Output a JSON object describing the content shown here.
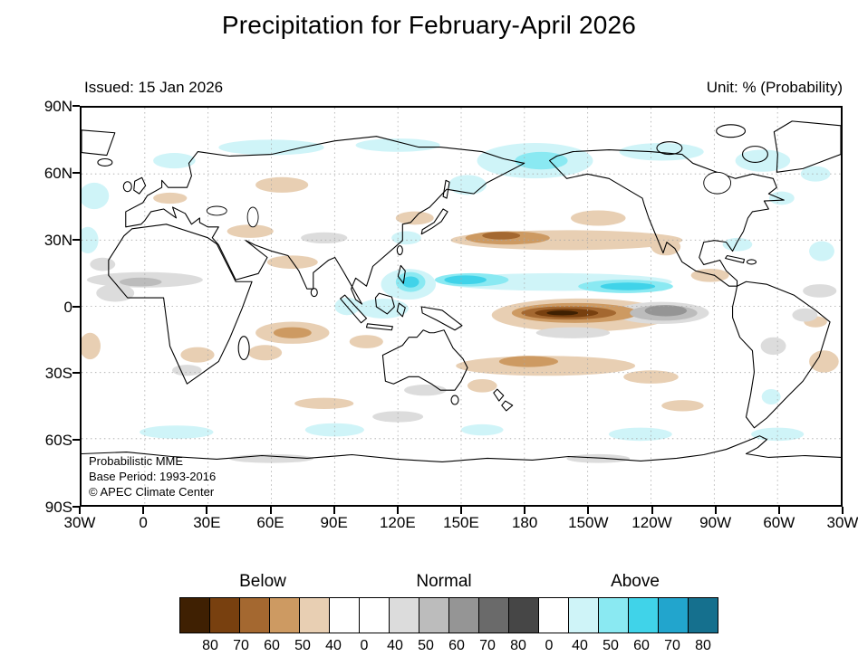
{
  "header": {
    "title": "Precipitation for February-April 2026",
    "issued": "Issued: 15 Jan 2026",
    "unit": "Unit: % (Probability)"
  },
  "map": {
    "credits": [
      "Probabilistic MME",
      "Base Period: 1993-2016",
      "© APEC Climate Center"
    ]
  },
  "axes": {
    "x_ticks": [
      "30W",
      "0",
      "30E",
      "60E",
      "90E",
      "120E",
      "150E",
      "180",
      "150W",
      "120W",
      "90W",
      "60W",
      "30W"
    ],
    "y_ticks": [
      "90N",
      "60N",
      "30N",
      "0",
      "30S",
      "60S",
      "90S"
    ]
  },
  "colorbar": {
    "groups": [
      "Below",
      "Normal",
      "Above"
    ],
    "cells": [
      "below.80",
      "below.70",
      "below.60",
      "below.50",
      "below.40",
      "white",
      "white",
      "normal.40",
      "normal.50",
      "normal.60",
      "normal.70",
      "normal.80",
      "white",
      "above.40",
      "above.50",
      "above.60",
      "above.70",
      "above.80"
    ],
    "boundary_labels": [
      "80",
      "70",
      "60",
      "50",
      "40",
      "0",
      "40",
      "50",
      "60",
      "70",
      "80",
      "0",
      "40",
      "50",
      "60",
      "70",
      "80"
    ]
  },
  "chart_data": {
    "type": "heatmap",
    "title": "Precipitation for February-April 2026",
    "issued": "Issued: 15 Jan 2026",
    "unit": "% (Probability)",
    "model": "Probabilistic MME",
    "base_period": "1993-2016",
    "source": "APEC Climate Center",
    "projection": "equirectangular",
    "lon_range": [
      -30,
      330
    ],
    "lat_range": [
      -90,
      90
    ],
    "grid": "dotted every 30 degrees",
    "categories": [
      "Below",
      "Normal",
      "Above"
    ],
    "probability_levels": [
      0,
      40,
      50,
      60,
      70,
      80
    ],
    "palette": {
      "below": {
        "40": "#e8cfb3",
        "50": "#cd9a62",
        "60": "#a46830",
        "70": "#78400f",
        "80": "#3f2002"
      },
      "normal": {
        "40": "#dcdcdc",
        "50": "#bcbcbc",
        "60": "#959595",
        "70": "#6a6a6a",
        "80": "#464646"
      },
      "above": {
        "40": "#cff4f8",
        "50": "#8ae9f2",
        "60": "#40d3e9",
        "70": "#22a5cd",
        "80": "#15708e"
      }
    },
    "regions": [
      {
        "name": "arctic-siberia-west",
        "lon": 60,
        "lat": 72,
        "lon_span": 50,
        "lat_span": 7,
        "category": "above",
        "level": 40
      },
      {
        "name": "arctic-siberia-east",
        "lon": 120,
        "lat": 73,
        "lon_span": 40,
        "lat_span": 6,
        "category": "above",
        "level": 40
      },
      {
        "name": "bering-chukotka-alaska",
        "lon": 185,
        "lat": 66,
        "lon_span": 55,
        "lat_span": 16,
        "category": "above",
        "level": 40
      },
      {
        "name": "arctic-canada",
        "lon": 245,
        "lat": 70,
        "lon_span": 40,
        "lat_span": 8,
        "category": "above",
        "level": 40
      },
      {
        "name": "baffin-greenland-coast",
        "lon": 293,
        "lat": 66,
        "lon_span": 26,
        "lat_span": 10,
        "category": "above",
        "level": 40
      },
      {
        "name": "greenland-south-tip",
        "lon": 318,
        "lat": 60,
        "lon_span": 14,
        "lat_span": 7,
        "category": "above",
        "level": 40
      },
      {
        "name": "north-atlantic-left-edge",
        "lon": -24,
        "lat": 50,
        "lon_span": 14,
        "lat_span": 12,
        "category": "above",
        "level": 40
      },
      {
        "name": "subtropical-atlantic-left-edge",
        "lon": -27,
        "lat": 30,
        "lon_span": 10,
        "lat_span": 12,
        "category": "above",
        "level": 40
      },
      {
        "name": "scandinavia-coast",
        "lon": 14,
        "lat": 66,
        "lon_span": 20,
        "lat_span": 7,
        "category": "above",
        "level": 40
      },
      {
        "name": "okhotsk-kamchatka",
        "lon": 153,
        "lat": 55,
        "lon_span": 18,
        "lat_span": 9,
        "category": "above",
        "level": 40
      },
      {
        "name": "itcz-pacific-band",
        "lon": 195,
        "lat": 11,
        "lon_span": 110,
        "lat_span": 8,
        "category": "above",
        "level": 40
      },
      {
        "name": "philippines-west-pacific",
        "lon": 125,
        "lat": 10,
        "lon_span": 26,
        "lat_span": 14,
        "category": "above",
        "level": 40
      },
      {
        "name": "borneo-celebes",
        "lon": 113,
        "lat": -1,
        "lon_span": 24,
        "lat_span": 9,
        "category": "above",
        "level": 40
      },
      {
        "name": "sumatra-east-indian-ocean",
        "lon": 96,
        "lat": 0,
        "lon_span": 12,
        "lat_span": 8,
        "category": "above",
        "level": 40
      },
      {
        "name": "east-china-sea",
        "lon": 124,
        "lat": 31,
        "lon_span": 14,
        "lat_span": 6,
        "category": "above",
        "level": 40
      },
      {
        "name": "florida-bahamas",
        "lon": 281,
        "lat": 28,
        "lon_span": 14,
        "lat_span": 6,
        "category": "above",
        "level": 40
      },
      {
        "name": "subtropical-atlantic-right-edge",
        "lon": 321,
        "lat": 25,
        "lon_span": 12,
        "lat_span": 9,
        "category": "above",
        "level": 40
      },
      {
        "name": "newfoundland",
        "lon": 302,
        "lat": 49,
        "lon_span": 12,
        "lat_span": 6,
        "category": "above",
        "level": 40
      },
      {
        "name": "southern-ocean-atlantic",
        "lon": 15,
        "lat": -57,
        "lon_span": 35,
        "lat_span": 6,
        "category": "above",
        "level": 40
      },
      {
        "name": "southern-ocean-indian",
        "lon": 90,
        "lat": -56,
        "lon_span": 28,
        "lat_span": 6,
        "category": "above",
        "level": 40
      },
      {
        "name": "southern-ocean-west-pacific",
        "lon": 160,
        "lat": -56,
        "lon_span": 20,
        "lat_span": 5,
        "category": "above",
        "level": 40
      },
      {
        "name": "southern-ocean-east-pacific",
        "lon": 235,
        "lat": -58,
        "lon_span": 30,
        "lat_span": 6,
        "category": "above",
        "level": 40
      },
      {
        "name": "southern-ocean-drake",
        "lon": 300,
        "lat": -58,
        "lon_span": 25,
        "lat_span": 6,
        "category": "above",
        "level": 40
      },
      {
        "name": "argentina-patagonia",
        "lon": 297,
        "lat": -41,
        "lon_span": 9,
        "lat_span": 7,
        "category": "above",
        "level": 40
      },
      {
        "name": "north-pacific-band",
        "lon": 200,
        "lat": 30,
        "lon_span": 110,
        "lat_span": 9,
        "category": "below",
        "level": 40
      },
      {
        "name": "gulf-of-alaska-extension",
        "lon": 215,
        "lat": 40,
        "lon_span": 26,
        "lat_span": 7,
        "category": "below",
        "level": 40
      },
      {
        "name": "california-baja",
        "lon": 247,
        "lat": 27,
        "lon_span": 14,
        "lat_span": 8,
        "category": "below",
        "level": 40
      },
      {
        "name": "west-siberia",
        "lon": 65,
        "lat": 55,
        "lon_span": 25,
        "lat_span": 7,
        "category": "below",
        "level": 40
      },
      {
        "name": "ne-asia",
        "lon": 128,
        "lat": 40,
        "lon_span": 18,
        "lat_span": 6,
        "category": "below",
        "level": 40
      },
      {
        "name": "equatorial-pacific-outer",
        "lon": 207,
        "lat": -4,
        "lon_span": 85,
        "lat_span": 15,
        "category": "below",
        "level": 40
      },
      {
        "name": "south-pacific-convergence",
        "lon": 190,
        "lat": -27,
        "lon_span": 85,
        "lat_span": 9,
        "category": "below",
        "level": 40
      },
      {
        "name": "southeast-pacific",
        "lon": 240,
        "lat": -32,
        "lon_span": 26,
        "lat_span": 6,
        "category": "below",
        "level": 40
      },
      {
        "name": "central-indian-ocean",
        "lon": 70,
        "lat": -12,
        "lon_span": 35,
        "lat_span": 10,
        "category": "below",
        "level": 40
      },
      {
        "name": "mascarene",
        "lon": 57,
        "lat": -21,
        "lon_span": 16,
        "lat_span": 7,
        "category": "below",
        "level": 40
      },
      {
        "name": "arabian-sea-india",
        "lon": 70,
        "lat": 20,
        "lon_span": 24,
        "lat_span": 6,
        "category": "below",
        "level": 40
      },
      {
        "name": "middle-east-caspian",
        "lon": 50,
        "lat": 34,
        "lon_span": 22,
        "lat_span": 6,
        "category": "below",
        "level": 40
      },
      {
        "name": "central-europe",
        "lon": 12,
        "lat": 49,
        "lon_span": 16,
        "lat_span": 5,
        "category": "below",
        "level": 40
      },
      {
        "name": "south-atlantic-right-edge",
        "lon": 322,
        "lat": -25,
        "lon_span": 14,
        "lat_span": 10,
        "category": "below",
        "level": 40
      },
      {
        "name": "south-atlantic-left-edge",
        "lon": -26,
        "lat": -18,
        "lon_span": 10,
        "lat_span": 12,
        "category": "below",
        "level": 40
      },
      {
        "name": "southern-africa",
        "lon": 25,
        "lat": -22,
        "lon_span": 16,
        "lat_span": 7,
        "category": "below",
        "level": 40
      },
      {
        "name": "timor-arafura",
        "lon": 105,
        "lat": -16,
        "lon_span": 16,
        "lat_span": 6,
        "category": "below",
        "level": 40
      },
      {
        "name": "south-indian-40s",
        "lon": 85,
        "lat": -44,
        "lon_span": 28,
        "lat_span": 5,
        "category": "below",
        "level": 40
      },
      {
        "name": "south-pacific-45s",
        "lon": 255,
        "lat": -45,
        "lon_span": 20,
        "lat_span": 5,
        "category": "below",
        "level": 40
      },
      {
        "name": "tasman-sea",
        "lon": 160,
        "lat": -36,
        "lon_span": 14,
        "lat_span": 6,
        "category": "below",
        "level": 40
      },
      {
        "name": "caribbean",
        "lon": 268,
        "lat": 14,
        "lon_span": 18,
        "lat_span": 6,
        "category": "below",
        "level": 40
      },
      {
        "name": "ne-brazil-coast",
        "lon": 318,
        "lat": -7,
        "lon_span": 11,
        "lat_span": 5,
        "category": "below",
        "level": 40
      },
      {
        "name": "sahel-atlantic-band",
        "lon": 0,
        "lat": 12,
        "lon_span": 55,
        "lat_span": 7,
        "category": "normal",
        "level": 40
      },
      {
        "name": "guinea-coast",
        "lon": -14,
        "lat": 6,
        "lon_span": 18,
        "lat_span": 8,
        "category": "normal",
        "level": 40
      },
      {
        "name": "nw-africa-coast",
        "lon": -20,
        "lat": 19,
        "lon_span": 12,
        "lat_span": 6,
        "category": "normal",
        "level": 40
      },
      {
        "name": "east-pacific-equatorial-outer",
        "lon": 245,
        "lat": -3,
        "lon_span": 45,
        "lat_span": 10,
        "category": "normal",
        "level": 40
      },
      {
        "name": "south-of-pacific-core",
        "lon": 203,
        "lat": -12,
        "lon_span": 35,
        "lat_span": 5,
        "category": "normal",
        "level": 40
      },
      {
        "name": "tibet-himalaya",
        "lon": 85,
        "lat": 31,
        "lon_span": 22,
        "lat_span": 5,
        "category": "normal",
        "level": 40
      },
      {
        "name": "ne-brazil-interior",
        "lon": 313,
        "lat": -4,
        "lon_span": 12,
        "lat_span": 6,
        "category": "normal",
        "level": 40
      },
      {
        "name": "bolivia-paraguay",
        "lon": 298,
        "lat": -18,
        "lon_span": 12,
        "lat_span": 8,
        "category": "normal",
        "level": 40
      },
      {
        "name": "south-africa-coast",
        "lon": 20,
        "lat": -29,
        "lon_span": 14,
        "lat_span": 5,
        "category": "normal",
        "level": 40
      },
      {
        "name": "great-australian-bight",
        "lon": 133,
        "lat": -38,
        "lon_span": 20,
        "lat_span": 5,
        "category": "normal",
        "level": 40
      },
      {
        "name": "southern-ocean-gray",
        "lon": 120,
        "lat": -50,
        "lon_span": 24,
        "lat_span": 5,
        "category": "normal",
        "level": 40
      },
      {
        "name": "equatorial-atlantic-right",
        "lon": 320,
        "lat": 7,
        "lon_span": 16,
        "lat_span": 6,
        "category": "normal",
        "level": 40
      },
      {
        "name": "antarctic-coast-east",
        "lon": 60,
        "lat": -69,
        "lon_span": 40,
        "lat_span": 4,
        "category": "normal",
        "level": 40
      },
      {
        "name": "antarctic-coast-pacific",
        "lon": 215,
        "lat": -69,
        "lon_span": 30,
        "lat_span": 4,
        "category": "normal",
        "level": 40
      },
      {
        "name": "itcz-west-mid",
        "lon": 155,
        "lat": 12,
        "lon_span": 35,
        "lat_span": 6,
        "category": "above",
        "level": 50
      },
      {
        "name": "itcz-east-mid",
        "lon": 228,
        "lat": 9,
        "lon_span": 45,
        "lat_span": 6,
        "category": "above",
        "level": 50
      },
      {
        "name": "philippines-mid",
        "lon": 126,
        "lat": 11,
        "lon_span": 14,
        "lat_span": 9,
        "category": "above",
        "level": 50
      },
      {
        "name": "bering-core",
        "lon": 188,
        "lat": 66,
        "lon_span": 25,
        "lat_span": 8,
        "category": "above",
        "level": 50
      },
      {
        "name": "north-pacific-band-mid",
        "lon": 172,
        "lat": 31,
        "lon_span": 40,
        "lat_span": 6,
        "category": "below",
        "level": 50
      },
      {
        "name": "equatorial-pacific-mid",
        "lon": 204,
        "lat": -3,
        "lon_span": 60,
        "lat_span": 9,
        "category": "below",
        "level": 50
      },
      {
        "name": "spcz-mid",
        "lon": 182,
        "lat": -25,
        "lon_span": 28,
        "lat_span": 5,
        "category": "below",
        "level": 50
      },
      {
        "name": "central-indian-mid",
        "lon": 70,
        "lat": -12,
        "lon_span": 18,
        "lat_span": 5,
        "category": "below",
        "level": 50
      },
      {
        "name": "east-pacific-gray-mid",
        "lon": 246,
        "lat": -3,
        "lon_span": 32,
        "lat_span": 7,
        "category": "normal",
        "level": 50
      },
      {
        "name": "sahel-gray-mid",
        "lon": -2,
        "lat": 11,
        "lon_span": 20,
        "lat_span": 4,
        "category": "normal",
        "level": 50
      },
      {
        "name": "itcz-west-core",
        "lon": 152,
        "lat": 12,
        "lon_span": 20,
        "lat_span": 4,
        "category": "above",
        "level": 60
      },
      {
        "name": "itcz-east-core",
        "lon": 229,
        "lat": 9,
        "lon_span": 26,
        "lat_span": 3.5,
        "category": "above",
        "level": 60
      },
      {
        "name": "philippines-core",
        "lon": 126,
        "lat": 11,
        "lon_span": 8,
        "lat_span": 5,
        "category": "above",
        "level": 60
      },
      {
        "name": "north-pacific-band-core",
        "lon": 169,
        "lat": 32,
        "lon_span": 18,
        "lat_span": 3.5,
        "category": "below",
        "level": 60
      },
      {
        "name": "equatorial-pacific-inner",
        "lon": 201,
        "lat": -3,
        "lon_span": 45,
        "lat_span": 6,
        "category": "below",
        "level": 60
      },
      {
        "name": "east-pacific-gray-core",
        "lon": 247,
        "lat": -2,
        "lon_span": 20,
        "lat_span": 5,
        "category": "normal",
        "level": 60
      },
      {
        "name": "equatorial-pacific-core",
        "lon": 200,
        "lat": -3,
        "lon_span": 30,
        "lat_span": 4,
        "category": "below",
        "level": 70
      },
      {
        "name": "equatorial-pacific-darkest",
        "lon": 198,
        "lat": -3,
        "lon_span": 15,
        "lat_span": 2.2,
        "category": "below",
        "level": 80
      }
    ]
  }
}
